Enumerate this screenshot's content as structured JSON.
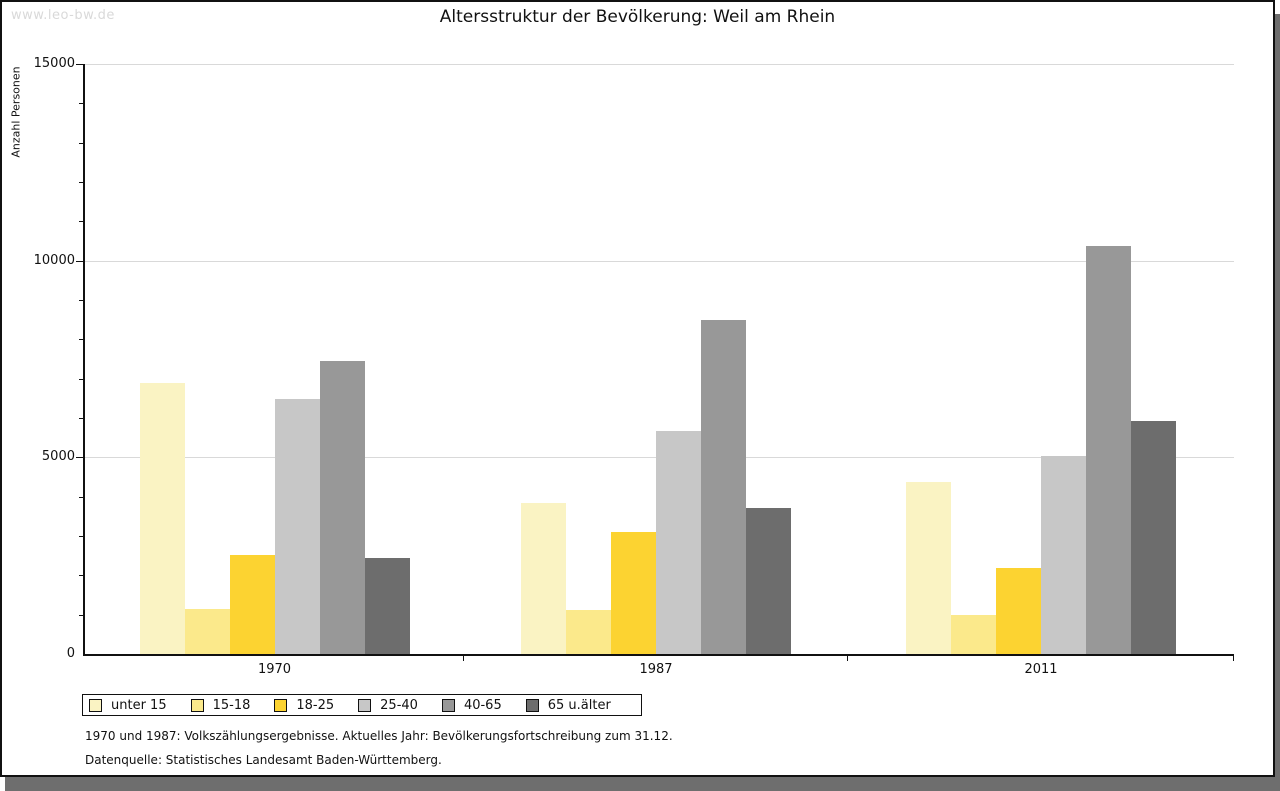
{
  "watermark": "www.leo-bw.de",
  "title": "Altersstruktur der Bevölkerung: Weil am Rhein",
  "chart_data": {
    "type": "bar",
    "title": "Altersstruktur der Bevölkerung: Weil am Rhein",
    "xlabel": "",
    "ylabel": "Anzahl Personen",
    "ylim": [
      0,
      15000
    ],
    "yticks_major": [
      0,
      5000,
      10000,
      15000
    ],
    "ytick_minor_step": 1000,
    "grid": "horizontal lines at major ticks",
    "legend_position": "bottom-left",
    "categories": [
      "1970",
      "1987",
      "2011"
    ],
    "series": [
      {
        "name": "unter 15",
        "color": "#faf3c3",
        "values": [
          6900,
          3840,
          4370
        ]
      },
      {
        "name": "15-18",
        "color": "#fbe98b",
        "values": [
          1140,
          1120,
          980
        ]
      },
      {
        "name": "18-25",
        "color": "#fcd331",
        "values": [
          2520,
          3100,
          2190
        ]
      },
      {
        "name": "25-40",
        "color": "#c7c7c7",
        "values": [
          6480,
          5670,
          5030
        ]
      },
      {
        "name": "40-65",
        "color": "#989898",
        "values": [
          7450,
          8490,
          10370
        ]
      },
      {
        "name": "65 u.älter",
        "color": "#6d6d6d",
        "values": [
          2440,
          3710,
          5920
        ]
      }
    ]
  },
  "footnotes": {
    "line1": "1970 und 1987: Volkszählungsergebnisse. Aktuelles Jahr: Bevölkerungsfortschreibung zum 31.12.",
    "line2": "Datenquelle: Statistisches Landesamt Baden-Württemberg."
  }
}
